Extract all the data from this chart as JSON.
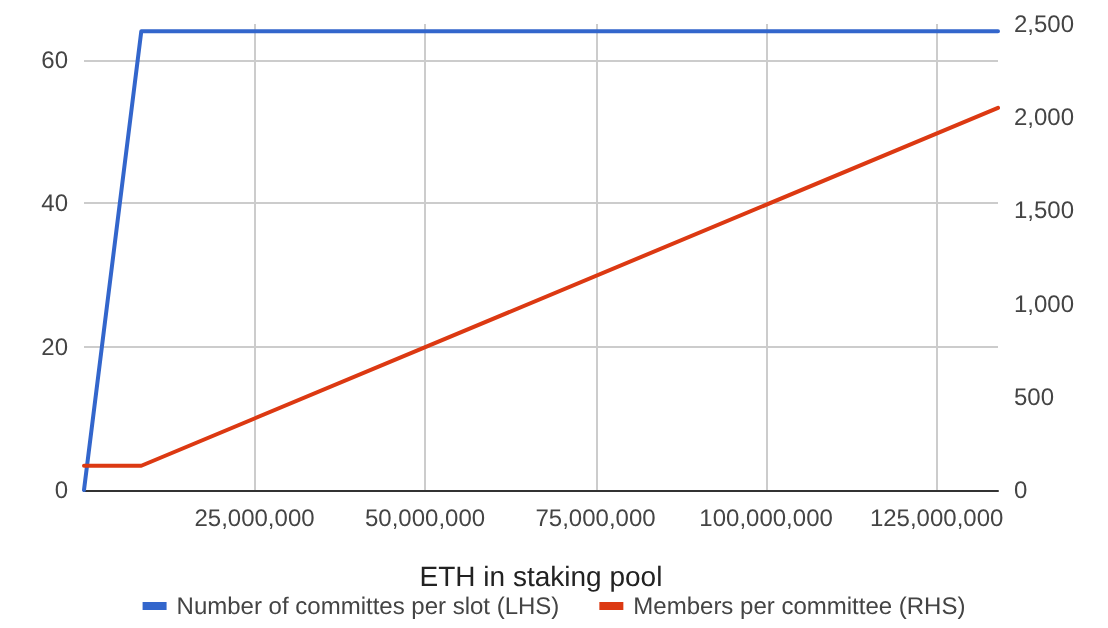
{
  "chart_data": {
    "type": "line",
    "xlabel": "ETH in staking pool",
    "x": [
      0,
      8400000,
      134000000
    ],
    "series": [
      {
        "name": "Number of committes per slot (LHS)",
        "color": "#3366cc",
        "values": [
          0,
          64,
          64
        ]
      },
      {
        "name": "Members per committee (RHS)",
        "color": "#dc3912",
        "axis": "y2",
        "x": [
          0,
          8400000,
          134000000
        ],
        "values": [
          130,
          130,
          2050
        ]
      }
    ],
    "xlim": [
      0,
      134000000
    ],
    "xticks": [
      {
        "value": 25000000,
        "label": "25,000,000"
      },
      {
        "value": 50000000,
        "label": "50,000,000"
      },
      {
        "value": 75000000,
        "label": "75,000,000"
      },
      {
        "value": 100000000,
        "label": "100,000,000"
      },
      {
        "value": 125000000,
        "label": "125,000,000"
      }
    ],
    "ylim": [
      0,
      65
    ],
    "yticks": [
      0,
      20,
      40,
      60
    ],
    "y2lim": [
      0,
      2500
    ],
    "y2ticks": [
      0,
      {
        "value": 500,
        "label": "500"
      },
      {
        "value": 1000,
        "label": "1,000"
      },
      {
        "value": 1500,
        "label": "1,500"
      },
      {
        "value": 2000,
        "label": "2,000"
      },
      {
        "value": 2500,
        "label": "2,500"
      }
    ],
    "grid": true,
    "legend": "bottom",
    "marker": "none",
    "line_style": "solid"
  }
}
